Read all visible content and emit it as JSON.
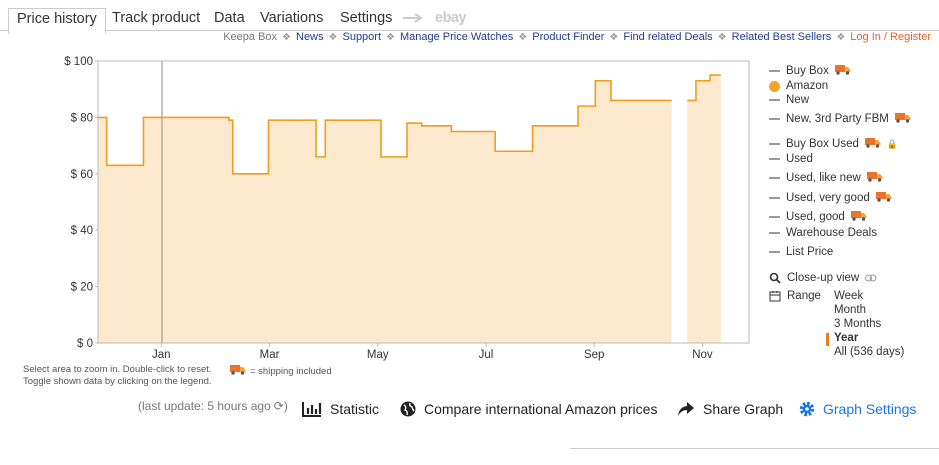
{
  "tabs": [
    "Price history",
    "Track product",
    "Data",
    "Variations",
    "Settings",
    "ebay"
  ],
  "links": [
    "Keepa Box",
    "News",
    "Support",
    "Manage Price Watches",
    "Product Finder",
    "Find related Deals",
    "Related Best Sellers",
    "Log In / Register"
  ],
  "chart_data": {
    "type": "line",
    "step": true,
    "x": [
      -0.17,
      -0.01,
      0.67,
      2.25,
      2.32,
      2.98,
      3.86,
      4.03,
      5.06,
      5.54,
      5.81,
      6.36,
      7.17,
      7.86,
      8.7,
      9.02,
      9.31,
      10.43,
      10.72,
      10.88,
      11.14,
      11.34
    ],
    "series": [
      {
        "name": "Amazon",
        "color": "#f39c1f",
        "values": [
          80,
          63,
          80,
          79,
          60,
          79,
          66,
          79,
          66,
          78,
          77,
          75,
          68,
          77,
          84,
          93,
          86,
          null,
          86,
          93,
          95,
          95
        ]
      }
    ],
    "xlim": [
      -0.17,
      11.86
    ],
    "xticks": [
      {
        "value": 1,
        "label": "Jan"
      },
      {
        "value": 3,
        "label": "Mar"
      },
      {
        "value": 5,
        "label": "May"
      },
      {
        "value": 7,
        "label": "Jul"
      },
      {
        "value": 9,
        "label": "Sep"
      },
      {
        "value": 11,
        "label": "Nov"
      }
    ],
    "ylim": [
      0,
      100
    ],
    "yticks": [
      {
        "value": 0,
        "label": "$ 0"
      },
      {
        "value": 20,
        "label": "$ 20"
      },
      {
        "value": 40,
        "label": "$ 40"
      },
      {
        "value": 60,
        "label": "$ 60"
      },
      {
        "value": 80,
        "label": "$ 80"
      },
      {
        "value": 100,
        "label": "$ 100"
      }
    ],
    "grid": false
  },
  "legend": [
    "Buy Box",
    "New",
    "New, 3rd Party FBM",
    "Buy Box Used",
    "Used",
    "Used, like new",
    "Used, very good",
    "Used, good",
    "Warehouse Deals",
    "List Price"
  ],
  "closeup": "Close-up view",
  "range": {
    "label": "Range",
    "options": [
      "Week",
      "Month",
      "3 Months",
      "Year",
      "All (536 days)"
    ]
  },
  "hints": [
    "Select area to zoom in. Double-click to reset.",
    "= shipping included",
    "Toggle shown data by clicking on the legend."
  ],
  "last_update": "(last update: 5 hours ago",
  "actions": [
    "Statistic",
    "Compare international Amazon prices",
    "Share Graph",
    "Graph Settings"
  ]
}
